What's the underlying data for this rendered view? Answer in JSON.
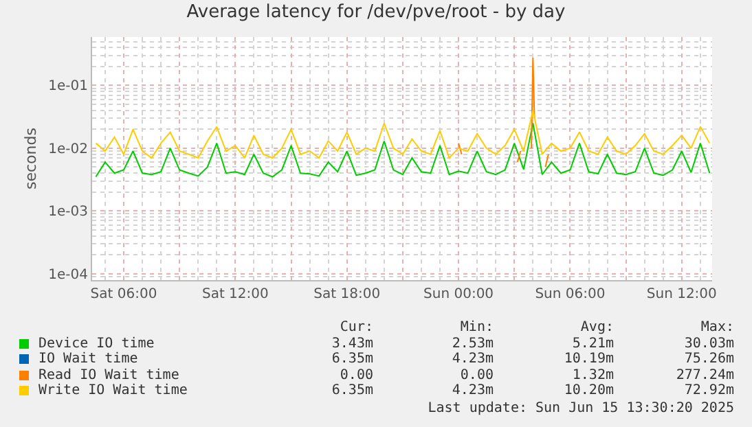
{
  "chart_data": {
    "type": "line",
    "title": "Average latency for /dev/pve/root - by day",
    "ylabel": "seconds",
    "x": [
      "2025-06-14T04:30",
      "2025-06-14T05:00",
      "2025-06-14T05:30",
      "2025-06-14T06:00",
      "2025-06-14T06:30",
      "2025-06-14T07:00",
      "2025-06-14T07:30",
      "2025-06-14T08:00",
      "2025-06-14T08:30",
      "2025-06-14T09:00",
      "2025-06-14T09:30",
      "2025-06-14T10:00",
      "2025-06-14T10:30",
      "2025-06-14T11:00",
      "2025-06-14T11:30",
      "2025-06-14T12:00",
      "2025-06-14T12:30",
      "2025-06-14T13:00",
      "2025-06-14T13:30",
      "2025-06-14T14:00",
      "2025-06-14T14:30",
      "2025-06-14T15:00",
      "2025-06-14T15:30",
      "2025-06-14T16:00",
      "2025-06-14T16:30",
      "2025-06-14T17:00",
      "2025-06-14T17:30",
      "2025-06-14T18:00",
      "2025-06-14T18:30",
      "2025-06-14T19:00",
      "2025-06-14T19:30",
      "2025-06-14T20:00",
      "2025-06-14T20:30",
      "2025-06-14T21:00",
      "2025-06-14T21:30",
      "2025-06-14T22:00",
      "2025-06-14T22:30",
      "2025-06-14T23:00",
      "2025-06-14T23:30",
      "2025-06-15T00:00",
      "2025-06-15T00:30",
      "2025-06-15T01:00",
      "2025-06-15T01:30",
      "2025-06-15T02:00",
      "2025-06-15T02:30",
      "2025-06-15T03:00",
      "2025-06-15T03:30",
      "2025-06-15T04:00",
      "2025-06-15T04:30",
      "2025-06-15T05:00",
      "2025-06-15T05:30",
      "2025-06-15T06:00",
      "2025-06-15T06:30",
      "2025-06-15T07:00",
      "2025-06-15T07:30",
      "2025-06-15T08:00",
      "2025-06-15T08:30",
      "2025-06-15T09:00",
      "2025-06-15T09:30",
      "2025-06-15T10:00",
      "2025-06-15T10:30",
      "2025-06-15T11:00",
      "2025-06-15T11:30",
      "2025-06-15T12:00",
      "2025-06-15T12:30",
      "2025-06-15T13:00",
      "2025-06-15T13:30"
    ],
    "series": [
      {
        "name": "Device IO time",
        "color": "#00cc00",
        "values": [
          0.0035,
          0.006,
          0.004,
          0.0045,
          0.009,
          0.004,
          0.0038,
          0.0042,
          0.01,
          0.0045,
          0.004,
          0.0036,
          0.005,
          0.012,
          0.004,
          0.0042,
          0.0038,
          0.008,
          0.004,
          0.0035,
          0.0045,
          0.011,
          0.004,
          0.0039,
          0.0036,
          0.006,
          0.0042,
          0.009,
          0.0037,
          0.004,
          0.0045,
          0.013,
          0.0045,
          0.0038,
          0.007,
          0.0042,
          0.004,
          0.011,
          0.0038,
          0.0043,
          0.004,
          0.009,
          0.0042,
          0.0038,
          0.0045,
          0.012,
          0.0046,
          0.025,
          0.0038,
          0.006,
          0.004,
          0.0045,
          0.012,
          0.0042,
          0.0039,
          0.008,
          0.004,
          0.0038,
          0.0042,
          0.01,
          0.004,
          0.0037,
          0.0045,
          0.009,
          0.0041,
          0.012,
          0.004
        ]
      },
      {
        "name": "IO Wait time",
        "color": "#0066b3",
        "values": [
          null,
          null,
          null,
          null,
          null,
          null,
          null,
          null,
          null,
          null,
          null,
          null,
          null,
          null,
          null,
          null,
          null,
          null,
          null,
          null,
          null,
          null,
          null,
          null,
          null,
          null,
          null,
          null,
          null,
          null,
          null,
          null,
          null,
          null,
          null,
          null,
          null,
          null,
          null,
          null,
          null,
          null,
          null,
          null,
          null,
          null,
          null,
          null,
          null,
          null,
          null,
          null,
          null,
          null,
          null,
          null,
          null,
          null,
          null,
          null,
          null,
          null,
          null,
          null,
          null,
          null,
          null
        ]
      },
      {
        "name": "Read IO Wait time",
        "color": "#ff8000",
        "x": [
          "2025-06-15T00:00",
          "2025-06-15T00:10",
          "2025-06-15T01:00",
          "2025-06-15T03:10",
          "2025-06-15T03:20",
          "2025-06-15T03:40",
          "2025-06-15T03:55",
          "2025-06-15T04:00",
          "2025-06-15T04:05",
          "2025-06-15T04:20",
          "2025-06-15T04:40",
          "2025-06-15T04:50"
        ],
        "values": [
          0.012,
          0.008,
          null,
          0.006,
          0.009,
          null,
          0.01,
          0.277,
          0.03,
          null,
          0.005,
          0.008
        ]
      },
      {
        "name": "Write IO Wait time",
        "color": "#ffcc00",
        "values": [
          0.012,
          0.009,
          0.015,
          0.008,
          0.02,
          0.009,
          0.007,
          0.012,
          0.018,
          0.009,
          0.008,
          0.007,
          0.013,
          0.022,
          0.009,
          0.011,
          0.007,
          0.016,
          0.008,
          0.007,
          0.01,
          0.02,
          0.008,
          0.009,
          0.007,
          0.013,
          0.009,
          0.018,
          0.008,
          0.01,
          0.009,
          0.025,
          0.01,
          0.008,
          0.014,
          0.009,
          0.008,
          0.019,
          0.007,
          0.01,
          0.009,
          0.017,
          0.01,
          0.008,
          0.011,
          0.02,
          0.009,
          0.04,
          0.008,
          0.012,
          0.009,
          0.01,
          0.018,
          0.009,
          0.008,
          0.015,
          0.009,
          0.008,
          0.011,
          0.017,
          0.009,
          0.008,
          0.011,
          0.016,
          0.01,
          0.022,
          0.012
        ]
      }
    ],
    "log": "y",
    "ylim": [
      7.9e-05,
      0.59
    ],
    "yticks": [
      {
        "value": 0.0001,
        "label": "1e-04"
      },
      {
        "value": 0.001,
        "label": "1e-03"
      },
      {
        "value": 0.01,
        "label": "1e-02"
      },
      {
        "value": 0.1,
        "label": "1e-01"
      }
    ],
    "xlim": [
      "2025-06-14T04:18",
      "2025-06-15T13:38"
    ],
    "xticks": [
      {
        "value": "2025-06-14T06:00",
        "label": "Sat 06:00"
      },
      {
        "value": "2025-06-14T09:00",
        "label": null
      },
      {
        "value": "2025-06-14T12:00",
        "label": "Sat 12:00"
      },
      {
        "value": "2025-06-14T15:00",
        "label": null
      },
      {
        "value": "2025-06-14T18:00",
        "label": "Sat 18:00"
      },
      {
        "value": "2025-06-14T21:00",
        "label": null
      },
      {
        "value": "2025-06-15T00:00",
        "label": "Sun 00:00"
      },
      {
        "value": "2025-06-15T03:00",
        "label": null
      },
      {
        "value": "2025-06-15T06:00",
        "label": "Sun 06:00"
      },
      {
        "value": "2025-06-15T09:00",
        "label": null
      },
      {
        "value": "2025-06-15T12:00",
        "label": "Sun 12:00"
      }
    ],
    "grid": true,
    "legend": "bottom",
    "annotations": [
      "Cur:",
      "Min:",
      "Avg:",
      "Max:",
      "3.43m",
      "2.53m",
      "5.21m",
      "30.03m",
      "6.35m",
      "4.23m",
      "10.19m",
      "75.26m",
      "0.00",
      "0.00",
      "1.32m",
      "277.24m",
      "6.35m",
      "4.23m",
      "10.20m",
      "72.92m",
      "Last update: Sun Jun 15 13:30:20 2025"
    ]
  }
}
